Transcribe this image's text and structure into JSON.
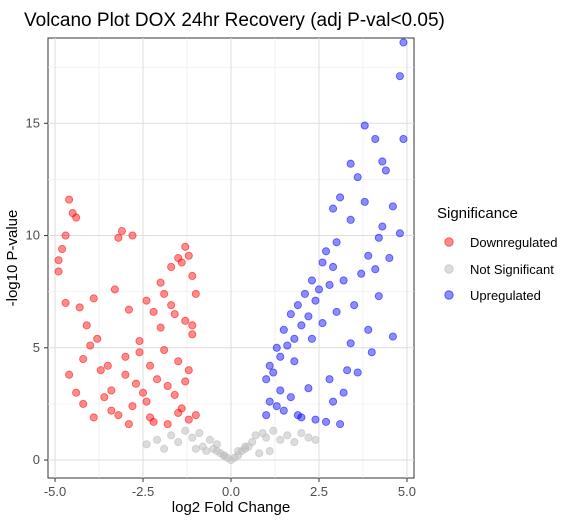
{
  "chart_data": {
    "type": "scatter",
    "title": "Volcano Plot DOX 24hr Recovery (adj P-val<0.05)",
    "xlabel": "log2 Fold Change",
    "ylabel": "-log10 P-value",
    "xlim": [
      -5.2,
      5.2
    ],
    "ylim": [
      -0.8,
      18.8
    ],
    "x_ticks": [
      -5.0,
      -2.5,
      0.0,
      2.5,
      5.0
    ],
    "x_tick_labels": [
      "-5.0",
      "-2.5",
      "0.0",
      "2.5",
      "5.0"
    ],
    "y_ticks": [
      0,
      5,
      10,
      15
    ],
    "y_tick_labels": [
      "0",
      "5",
      "10",
      "15"
    ],
    "grid": true,
    "legend": {
      "title": "Significance",
      "position": "right"
    },
    "series": [
      {
        "name": "Downregulated",
        "color": "#ff0000",
        "x": [
          -4.9,
          -4.9,
          -4.6,
          -4.5,
          -4.4,
          -4.7,
          -4.8,
          -3.1,
          -3.2,
          -2.8,
          -4.7,
          -4.3,
          -3.9,
          -3.3,
          -4.1,
          -2.9,
          -2.4,
          -3.8,
          -2.2,
          -1.9,
          -1.7,
          -1.5,
          -1.3,
          -1.2,
          -1.1,
          -1.0,
          -1.4,
          -2.0,
          -3.5,
          -2.6,
          -1.6,
          -4.6,
          -4.2,
          -4.0,
          -3.7,
          -3.4,
          -3.0,
          -2.7,
          -2.5,
          -2.3,
          -2.1,
          -1.8,
          -1.6,
          -1.3,
          -1.0,
          -1.2,
          -1.5,
          -2.8,
          -3.6,
          -4.4,
          -3.2,
          -2.2,
          -1.8,
          -1.4,
          -1.1,
          -2.0,
          -2.6,
          -3.0,
          -1.9,
          -1.3,
          -1.7,
          -2.4,
          -3.9,
          -4.2,
          -1.5,
          -1.2,
          -2.3,
          -2.9,
          -3.4,
          -1.1
        ],
        "y": [
          8.4,
          8.9,
          11.6,
          11.0,
          10.8,
          10.0,
          9.4,
          10.2,
          9.9,
          10.0,
          7.0,
          6.8,
          7.2,
          7.6,
          6.0,
          6.7,
          7.1,
          5.4,
          6.6,
          7.4,
          8.6,
          9.0,
          9.5,
          9.1,
          8.2,
          7.4,
          8.8,
          7.9,
          4.2,
          4.8,
          6.5,
          3.8,
          4.5,
          5.1,
          4.0,
          3.1,
          3.8,
          3.4,
          3.0,
          4.2,
          3.6,
          3.3,
          2.9,
          3.5,
          2.0,
          1.8,
          2.1,
          2.4,
          2.8,
          3.0,
          2.0,
          1.7,
          1.6,
          2.3,
          5.6,
          5.9,
          5.3,
          4.6,
          4.9,
          6.2,
          6.9,
          2.6,
          1.9,
          2.5,
          4.4,
          4.0,
          1.9,
          1.6,
          2.2,
          6.0
        ]
      },
      {
        "name": "Not Significant",
        "color": "#c0c0c0",
        "x": [
          -2.4,
          -2.1,
          -1.9,
          -1.7,
          -1.5,
          -1.3,
          -1.1,
          -0.9,
          -0.8,
          -0.6,
          -0.5,
          -0.4,
          -0.3,
          -0.2,
          -0.1,
          0.0,
          0.1,
          0.2,
          0.3,
          0.4,
          0.5,
          0.6,
          0.7,
          0.9,
          1.0,
          1.2,
          1.4,
          1.6,
          1.8,
          2.0,
          2.2,
          2.4,
          -0.7,
          -0.4,
          0.4,
          0.8,
          -1.0,
          1.1,
          -0.2,
          0.2
        ],
        "y": [
          0.7,
          0.9,
          0.5,
          1.1,
          0.8,
          1.3,
          1.0,
          1.2,
          0.6,
          0.9,
          0.5,
          0.4,
          0.3,
          0.2,
          0.1,
          0.0,
          0.1,
          0.2,
          0.4,
          0.5,
          0.6,
          0.8,
          1.1,
          1.2,
          1.0,
          1.3,
          0.9,
          1.1,
          0.8,
          1.2,
          1.0,
          0.9,
          0.4,
          0.7,
          0.6,
          0.3,
          0.5,
          0.4,
          0.2,
          0.4
        ]
      },
      {
        "name": "Upregulated",
        "color": "#0000ff",
        "x": [
          4.9,
          4.8,
          3.8,
          4.3,
          4.9,
          4.1,
          3.4,
          3.6,
          4.4,
          3.1,
          3.8,
          4.6,
          4.3,
          2.9,
          3.4,
          4.8,
          4.2,
          3.0,
          2.7,
          2.9,
          3.9,
          2.6,
          2.3,
          2.5,
          2.1,
          1.9,
          1.7,
          1.5,
          1.3,
          1.1,
          1.0,
          2.4,
          2.8,
          3.2,
          3.7,
          4.1,
          4.5,
          2.2,
          1.8,
          1.4,
          1.2,
          1.6,
          2.0,
          2.6,
          3.0,
          3.5,
          3.9,
          4.6,
          1.0,
          1.3,
          1.7,
          2.2,
          2.8,
          3.3,
          3.6,
          4.0,
          2.4,
          1.9,
          1.5,
          2.9,
          3.2,
          1.1,
          2.0,
          2.7,
          3.1,
          1.4,
          1.8,
          2.3,
          3.4,
          4.2
        ],
        "y": [
          18.6,
          17.1,
          14.9,
          13.3,
          14.3,
          14.3,
          13.2,
          12.6,
          12.9,
          11.7,
          11.5,
          11.3,
          10.4,
          11.2,
          10.7,
          10.1,
          9.9,
          9.7,
          9.3,
          8.6,
          9.1,
          8.8,
          8.0,
          7.6,
          7.4,
          6.9,
          6.5,
          5.8,
          5.0,
          4.2,
          3.6,
          7.1,
          7.8,
          8.0,
          8.3,
          8.5,
          9.0,
          6.4,
          5.4,
          4.6,
          3.9,
          5.1,
          6.0,
          6.1,
          6.6,
          6.9,
          5.8,
          5.5,
          2.0,
          2.4,
          2.8,
          3.2,
          3.6,
          4.0,
          3.9,
          4.8,
          1.8,
          2.0,
          2.2,
          2.6,
          3.0,
          2.6,
          1.9,
          1.7,
          1.6,
          3.1,
          4.4,
          5.4,
          5.2,
          7.3
        ]
      }
    ]
  }
}
